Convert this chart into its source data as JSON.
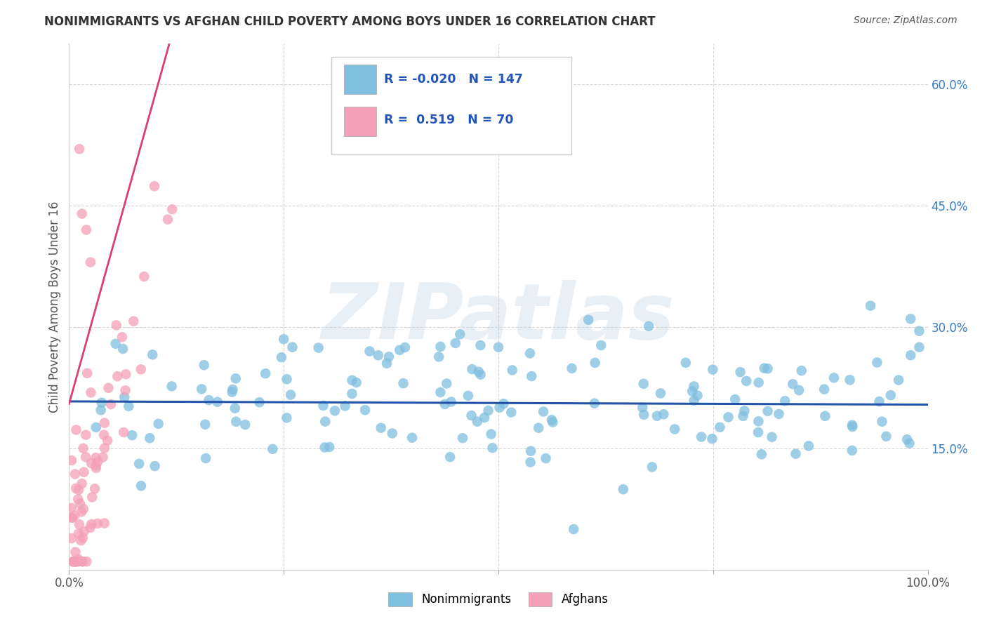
{
  "title": "NONIMMIGRANTS VS AFGHAN CHILD POVERTY AMONG BOYS UNDER 16 CORRELATION CHART",
  "source": "Source: ZipAtlas.com",
  "ylabel": "Child Poverty Among Boys Under 16",
  "watermark": "ZIPatlas",
  "legend_blue_label": "Nonimmigrants",
  "legend_pink_label": "Afghans",
  "R_blue": -0.02,
  "N_blue": 147,
  "R_pink": 0.519,
  "N_pink": 70,
  "blue_color": "#7fbfdf",
  "pink_color": "#f4a0b8",
  "blue_line_color": "#2255aa",
  "pink_line_color": "#d94070",
  "background_color": "#ffffff",
  "xlim": [
    0.0,
    1.0
  ],
  "ylim": [
    0.0,
    0.65
  ],
  "ytick_vals": [
    0.15,
    0.3,
    0.45,
    0.6
  ],
  "ytick_labels": [
    "15.0%",
    "30.0%",
    "45.0%",
    "60.0%"
  ]
}
